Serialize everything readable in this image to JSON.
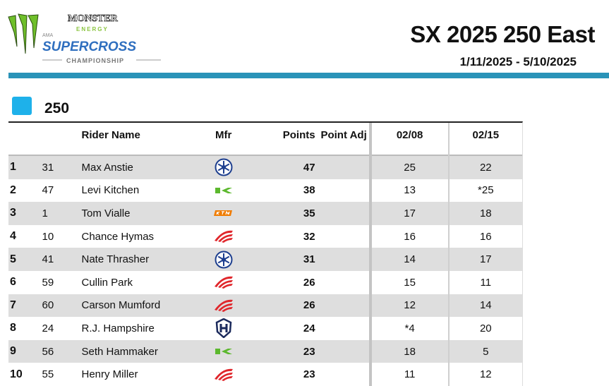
{
  "header": {
    "logo_text": "MONSTER ENERGY AMA SUPERCROSS CHAMPIONSHIP",
    "title": "SX 2025 250 East",
    "dates": "1/11/2025 - 5/10/2025"
  },
  "class": {
    "label": "250",
    "color": "#1eb1ea"
  },
  "columns": {
    "pos": "",
    "num": "",
    "name": "Rider Name",
    "mfr": "Mfr",
    "points": "Points",
    "adj": "Point Adj",
    "r1": "02/08",
    "r2": "02/15"
  },
  "brand_colors": {
    "yamaha": "#1e3f8f",
    "kawasaki": "#5cb82e",
    "ktm": "#f07c00",
    "honda": "#e0262b",
    "husqvarna": "#1b2a5c"
  },
  "rows": [
    {
      "pos": "1",
      "num": "31",
      "name": "Max Anstie",
      "mfr": "yamaha",
      "points": "47",
      "adj": "",
      "r1": "25",
      "r2": "22"
    },
    {
      "pos": "2",
      "num": "47",
      "name": "Levi Kitchen",
      "mfr": "kawasaki",
      "points": "38",
      "adj": "",
      "r1": "13",
      "r2": "*25"
    },
    {
      "pos": "3",
      "num": "1",
      "name": "Tom Vialle",
      "mfr": "ktm",
      "points": "35",
      "adj": "",
      "r1": "17",
      "r2": "18"
    },
    {
      "pos": "4",
      "num": "10",
      "name": "Chance Hymas",
      "mfr": "honda",
      "points": "32",
      "adj": "",
      "r1": "16",
      "r2": "16"
    },
    {
      "pos": "5",
      "num": "41",
      "name": "Nate Thrasher",
      "mfr": "yamaha",
      "points": "31",
      "adj": "",
      "r1": "14",
      "r2": "17"
    },
    {
      "pos": "6",
      "num": "59",
      "name": "Cullin Park",
      "mfr": "honda",
      "points": "26",
      "adj": "",
      "r1": "15",
      "r2": "11"
    },
    {
      "pos": "7",
      "num": "60",
      "name": "Carson Mumford",
      "mfr": "honda",
      "points": "26",
      "adj": "",
      "r1": "12",
      "r2": "14"
    },
    {
      "pos": "8",
      "num": "24",
      "name": "R.J. Hampshire",
      "mfr": "husqvarna",
      "points": "24",
      "adj": "",
      "r1": "*4",
      "r2": "20"
    },
    {
      "pos": "9",
      "num": "56",
      "name": "Seth Hammaker",
      "mfr": "kawasaki",
      "points": "23",
      "adj": "",
      "r1": "18",
      "r2": "5"
    },
    {
      "pos": "10",
      "num": "55",
      "name": "Henry Miller",
      "mfr": "honda",
      "points": "23",
      "adj": "",
      "r1": "11",
      "r2": "12"
    }
  ]
}
